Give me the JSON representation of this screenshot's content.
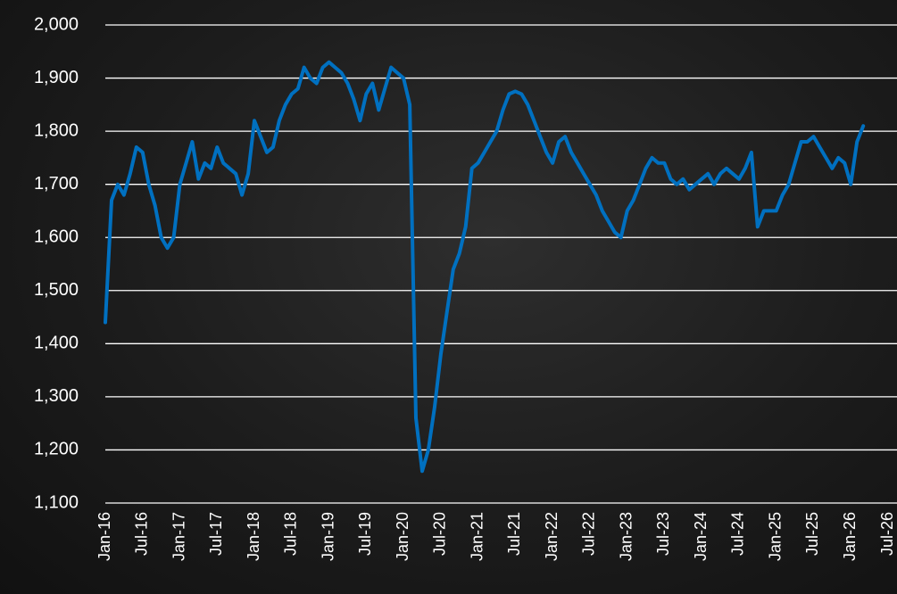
{
  "chart_data": {
    "type": "line",
    "categories": [
      "Jan-16",
      null,
      null,
      null,
      null,
      null,
      "Jul-16",
      null,
      null,
      null,
      null,
      null,
      "Jan-17",
      null,
      null,
      null,
      null,
      null,
      "Jul-17",
      null,
      null,
      null,
      null,
      null,
      "Jan-18",
      null,
      null,
      null,
      null,
      null,
      "Jul-18",
      null,
      null,
      null,
      null,
      null,
      "Jan-19",
      null,
      null,
      null,
      null,
      null,
      "Jul-19",
      null,
      null,
      null,
      null,
      null,
      "Jan-20",
      null,
      null,
      null,
      null,
      null,
      "Jul-20",
      null,
      null,
      null,
      null,
      null,
      "Jan-21",
      null,
      null,
      null,
      null,
      null,
      "Jul-21",
      null,
      null,
      null,
      null,
      null,
      "Jan-22",
      null,
      null,
      null,
      null,
      null,
      "Jul-22",
      null,
      null,
      null,
      null,
      null,
      "Jan-23",
      null,
      null,
      null,
      null,
      null,
      "Jul-23",
      null,
      null,
      null,
      null,
      null,
      "Jan-24",
      null,
      null,
      null,
      null,
      null,
      "Jul-24",
      null,
      null,
      null,
      null,
      null,
      "Jan-25",
      null,
      null,
      null,
      null,
      null,
      "Jul-25",
      null,
      null,
      null,
      null,
      null,
      "Jan-26",
      null,
      null,
      null,
      null,
      null,
      "Jul-26"
    ],
    "series": [
      {
        "color": "#0070c0",
        "values": [
          1440,
          1670,
          1700,
          1680,
          1720,
          1770,
          1760,
          1700,
          1660,
          1600,
          1580,
          1600,
          1700,
          1740,
          1780,
          1710,
          1740,
          1730,
          1770,
          1740,
          1730,
          1720,
          1680,
          1720,
          1820,
          1790,
          1760,
          1770,
          1820,
          1850,
          1870,
          1880,
          1920,
          1900,
          1890,
          1920,
          1930,
          1920,
          1910,
          1890,
          1860,
          1820,
          1870,
          1890,
          1840,
          1880,
          1920,
          1910,
          1900,
          1850,
          1260,
          1160,
          1200,
          1280,
          1380,
          1460,
          1540,
          1570,
          1620,
          1730,
          1740,
          1760,
          1780,
          1800,
          1840,
          1870,
          1875,
          1870,
          1850,
          1820,
          1790,
          1760,
          1740,
          1780,
          1790,
          1760,
          1740,
          1720,
          1700,
          1680,
          1650,
          1630,
          1610,
          1600,
          1650,
          1670,
          1700,
          1730,
          1750,
          1740,
          1740,
          1710,
          1700,
          1710,
          1690,
          1700,
          1710,
          1720,
          1700,
          1720,
          1730,
          1720,
          1710,
          1730,
          1760,
          1620,
          1650,
          1650,
          1650,
          1680,
          1700,
          1740,
          1780,
          1780,
          1790,
          1770,
          1750,
          1730,
          1750,
          1740,
          1700,
          1780,
          1810,
          null,
          null,
          null,
          null
        ]
      }
    ],
    "ylim": [
      1100,
      2000
    ],
    "yticks": [
      {
        "value": 1100,
        "label": "1,100"
      },
      {
        "value": 1200,
        "label": "1,200"
      },
      {
        "value": 1300,
        "label": "1,300"
      },
      {
        "value": 1400,
        "label": "1,400"
      },
      {
        "value": 1500,
        "label": "1,500"
      },
      {
        "value": 1600,
        "label": "1,600"
      },
      {
        "value": 1700,
        "label": "1,700"
      },
      {
        "value": 1800,
        "label": "1,800"
      },
      {
        "value": 1900,
        "label": "1,900"
      },
      {
        "value": 2000,
        "label": "2,000"
      }
    ],
    "grid": true
  }
}
